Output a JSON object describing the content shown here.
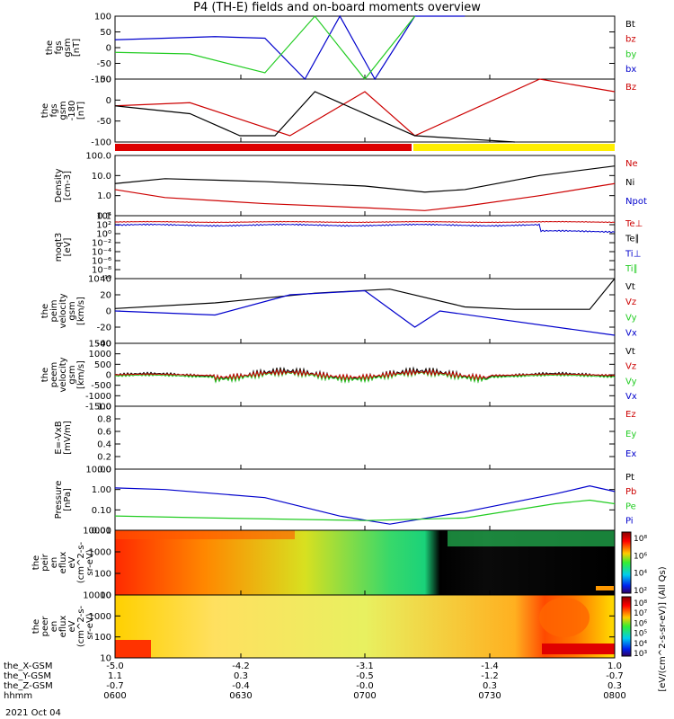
{
  "title": "P4 (TH-E) fields and on-board moments overview",
  "date": "2021 Oct 04",
  "colors": {
    "black": "#000000",
    "red": "#cc0000",
    "green": "#22cc22",
    "blue": "#0000cc",
    "yellow": "#ffee00",
    "white_bar": "#ffffff"
  },
  "panels": [
    {
      "id": "fgs-gsm",
      "ylabel": [
        "the",
        "fgs",
        "gsm",
        "[nT]"
      ],
      "ticks": [
        "100",
        "50",
        "0",
        "-50",
        "-100"
      ],
      "legend": [
        {
          "label": "Bt",
          "color": "#000000"
        },
        {
          "label": "bz",
          "color": "#cc0000"
        },
        {
          "label": "by",
          "color": "#22cc22"
        },
        {
          "label": "bx",
          "color": "#0000cc"
        }
      ]
    },
    {
      "id": "fgs-gsm-180",
      "ylabel": [
        "the",
        "fgs",
        "gsm",
        "-180",
        "[nT]"
      ],
      "ticks": [
        "50",
        "0",
        "-50",
        "-100"
      ],
      "legend": [
        {
          "label": "Bz",
          "color": "#cc0000"
        }
      ]
    },
    {
      "id": "density",
      "ylabel": [
        "Density",
        "[cm-3]"
      ],
      "ticks": [
        "100.0",
        "10.0",
        "1.0",
        "0.1"
      ],
      "legend": [
        {
          "label": "Ne",
          "color": "#cc0000"
        },
        {
          "label": "Ni",
          "color": "#000000"
        },
        {
          "label": "Npot",
          "color": "#0000cc"
        }
      ]
    },
    {
      "id": "temperature",
      "ylabel": [
        "moqt3",
        "[eV]"
      ],
      "ticks": [
        "10⁴",
        "10²",
        "10⁰",
        "10⁻²",
        "10⁻⁴",
        "10⁻⁶",
        "10⁻⁸",
        "10⁻¹⁰"
      ],
      "legend": [
        {
          "label": "Te⊥",
          "color": "#cc0000"
        },
        {
          "label": "Te∥",
          "color": "#000000"
        },
        {
          "label": "Ti⊥",
          "color": "#0000cc"
        },
        {
          "label": "Ti∥",
          "color": "#22cc22"
        }
      ]
    },
    {
      "id": "peim-velocity",
      "ylabel": [
        "the",
        "peim",
        "velocity",
        "gsm",
        "[km/s]"
      ],
      "ticks": [
        "40",
        "20",
        "0",
        "-20",
        "-40"
      ],
      "legend": [
        {
          "label": "Vt",
          "color": "#000000"
        },
        {
          "label": "Vz",
          "color": "#cc0000"
        },
        {
          "label": "Vy",
          "color": "#22cc22"
        },
        {
          "label": "Vx",
          "color": "#0000cc"
        }
      ]
    },
    {
      "id": "peem-velocity",
      "ylabel": [
        "the",
        "peem",
        "velocity",
        "gsm",
        "[km/s]"
      ],
      "ticks": [
        "1500",
        "1000",
        "500",
        "0",
        "-500",
        "-1000",
        "-1500"
      ],
      "legend": [
        {
          "label": "Vt",
          "color": "#000000"
        },
        {
          "label": "Vz",
          "color": "#cc0000"
        },
        {
          "label": "Vy",
          "color": "#22cc22"
        },
        {
          "label": "Vx",
          "color": "#0000cc"
        }
      ]
    },
    {
      "id": "efield",
      "ylabel": [
        "E=-VxB",
        "[mV/m]"
      ],
      "ticks": [
        "1.0",
        "0.8",
        "0.6",
        "0.4",
        "0.2",
        "0.0"
      ],
      "legend": [
        {
          "label": "Ez",
          "color": "#cc0000"
        },
        {
          "label": "Ey",
          "color": "#22cc22"
        },
        {
          "label": "Ex",
          "color": "#0000cc"
        }
      ]
    },
    {
      "id": "pressure",
      "ylabel": [
        "Pressure",
        "[nPa]"
      ],
      "ticks": [
        "10.00",
        "1.00",
        "0.10",
        "0.01"
      ],
      "legend": [
        {
          "label": "Pt",
          "color": "#000000"
        },
        {
          "label": "Pb",
          "color": "#cc0000"
        },
        {
          "label": "Pe",
          "color": "#22cc22"
        },
        {
          "label": "Pi",
          "color": "#0000cc"
        }
      ]
    },
    {
      "id": "peir-spec",
      "ylabel": [
        "the",
        "peir",
        "en",
        "eflux",
        "eV",
        "(cm^2-s-",
        "sr-eV)"
      ],
      "ticks": [
        "10000",
        "1000",
        "100",
        "10"
      ],
      "colorbar": [
        "10⁸",
        "10⁶",
        "10⁴",
        "10²"
      ]
    },
    {
      "id": "peer-spec",
      "ylabel": [
        "the",
        "peer",
        "en",
        "eflux",
        "eV",
        "(cm^2-s-",
        "sr-eV)"
      ],
      "ticks": [
        "10000",
        "1000",
        "100",
        "10"
      ],
      "colorbar": [
        "10⁸",
        "10⁷",
        "10⁶",
        "10⁵",
        "10⁴",
        "10³"
      ]
    }
  ],
  "colorbar_label": "[eV/(cm^2-s-sr-eV)] (All Qs)",
  "x_axis": {
    "rows": [
      {
        "label": "the_X-GSM",
        "values": [
          "-5.0",
          "-4.2",
          "-3.1",
          "-1.4",
          "1.0"
        ]
      },
      {
        "label": "the_Y-GSM",
        "values": [
          "1.1",
          "0.3",
          "-0.5",
          "-1.2",
          "-0.7"
        ]
      },
      {
        "label": "the_Z-GSM",
        "values": [
          "-0.7",
          "-0.4",
          "-0.0",
          "0.3",
          "0.3"
        ]
      },
      {
        "label": "hhmm",
        "values": [
          "0600",
          "0630",
          "0700",
          "0730",
          "0800"
        ]
      }
    ]
  },
  "chart_data": [
    {
      "type": "line",
      "title": "",
      "ylabel": "the fgs gsm [nT]",
      "ylim": [
        -100,
        100
      ],
      "series": [
        {
          "name": "bx",
          "x": [
            0,
            20,
            30,
            38,
            45,
            52,
            60,
            70
          ],
          "values": [
            25,
            35,
            30,
            -100,
            100,
            -100,
            100,
            100
          ]
        },
        {
          "name": "by",
          "x": [
            0,
            15,
            30,
            40,
            50,
            60
          ],
          "values": [
            -15,
            -20,
            -80,
            100,
            -100,
            100
          ]
        }
      ]
    },
    {
      "type": "line",
      "title": "",
      "ylabel": "the fgs gsm -180 [nT]",
      "ylim": [
        -120,
        80
      ],
      "series": [
        {
          "name": "Bz",
          "x": [
            0,
            15,
            35,
            50,
            60,
            85,
            100
          ],
          "values": [
            -5,
            5,
            -100,
            40,
            -100,
            80,
            40
          ]
        },
        {
          "name": "Bt",
          "x": [
            0,
            15,
            25,
            32,
            40,
            60,
            80
          ],
          "values": [
            -5,
            -30,
            -100,
            -100,
            40,
            -100,
            -120
          ]
        }
      ]
    },
    {
      "type": "line",
      "title": "",
      "ylabel": "Density [cm-3]",
      "ylog": true,
      "ylim": [
        0.1,
        100
      ],
      "series": [
        {
          "name": "Ni",
          "x": [
            0,
            10,
            30,
            50,
            62,
            70,
            85,
            100
          ],
          "values": [
            4,
            7,
            5,
            3,
            1.5,
            2,
            10,
            30
          ]
        },
        {
          "name": "Ne",
          "x": [
            0,
            10,
            30,
            50,
            62,
            70,
            85,
            100
          ],
          "values": [
            2,
            0.8,
            0.4,
            0.25,
            0.18,
            0.3,
            1,
            4
          ]
        }
      ]
    },
    {
      "type": "line",
      "title": "",
      "ylabel": "peim velocity [km/s]",
      "ylim": [
        -40,
        40
      ],
      "series": [
        {
          "name": "Vt",
          "x": [
            0,
            20,
            40,
            55,
            70,
            80,
            95,
            100
          ],
          "values": [
            3,
            10,
            22,
            27,
            5,
            2,
            2,
            40
          ]
        },
        {
          "name": "Vx",
          "x": [
            0,
            20,
            35,
            50,
            60,
            65,
            100
          ],
          "values": [
            0,
            -5,
            20,
            25,
            -20,
            0,
            -30
          ]
        }
      ]
    },
    {
      "type": "line",
      "title": "",
      "ylabel": "Pressure [nPa]",
      "ylog": true,
      "ylim": [
        0.01,
        10
      ],
      "series": [
        {
          "name": "Pi",
          "x": [
            0,
            10,
            30,
            45,
            55,
            70,
            88,
            95,
            100
          ],
          "values": [
            1.2,
            1,
            0.4,
            0.05,
            0.02,
            0.08,
            0.6,
            1.5,
            0.8
          ]
        },
        {
          "name": "Pe",
          "x": [
            0,
            20,
            50,
            70,
            88,
            95,
            100
          ],
          "values": [
            0.05,
            0.04,
            0.03,
            0.04,
            0.2,
            0.3,
            0.2
          ]
        }
      ]
    }
  ]
}
